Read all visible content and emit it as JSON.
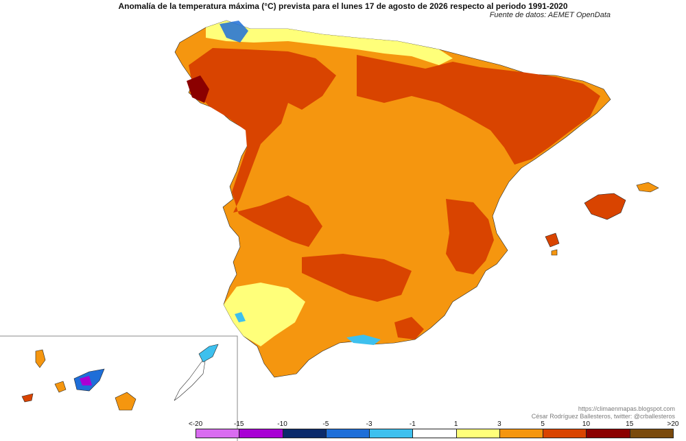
{
  "title": "Anomalía de la temperatura máxima (°C) prevista para el lunes 17 de agosto de 2026 respecto al periodo 1991-2020",
  "source": "Fuente de datos: AEMET OpenData",
  "credits": {
    "blog": "https://climaenmapas.blogspot.com",
    "author": "César Rodríguez Ballesteros, twitter: @crballesteros"
  },
  "legend": {
    "ticks": [
      "<-20",
      "-15",
      "-10",
      "-5",
      "-3",
      "-1",
      "1",
      "3",
      "5",
      "10",
      "15",
      ">20"
    ],
    "colors": [
      "#d96cf0",
      "#a800d4",
      "#0b2a6b",
      "#1e6ed8",
      "#3ec0ee",
      "#ffffff",
      "#ffff7a",
      "#f5960f",
      "#d94400",
      "#8b0000",
      "#7a4a0c"
    ]
  },
  "map_colors": {
    "moderate_warm": "#f5960f",
    "warm": "#d94400",
    "very_warm": "#8b0000",
    "mild": "#ffff7a",
    "neutral": "#ffffff",
    "cool": "#3ec0ee",
    "cold": "#1e6ed8",
    "very_cold": "#a800d4"
  }
}
